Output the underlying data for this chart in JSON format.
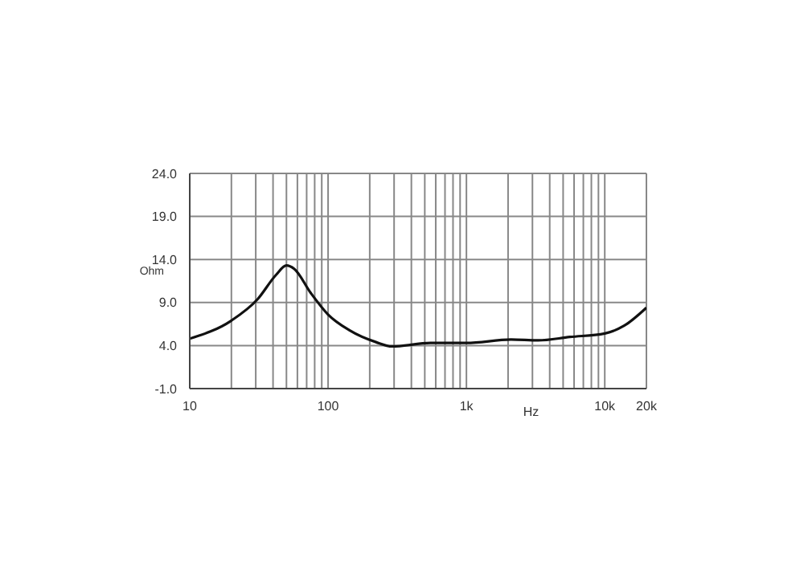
{
  "chart_data": {
    "type": "line",
    "xlabel": "Hz",
    "ylabel": "Ohm",
    "log": "x",
    "grid": true,
    "marker": "none",
    "line_style": "solid",
    "xlim": [
      10,
      20000
    ],
    "ylim": [
      -1,
      24
    ],
    "xticks": [
      {
        "value": 10,
        "label": "10"
      },
      {
        "value": 20,
        "label": null
      },
      {
        "value": 30,
        "label": null
      },
      {
        "value": 40,
        "label": null
      },
      {
        "value": 50,
        "label": null
      },
      {
        "value": 60,
        "label": null
      },
      {
        "value": 70,
        "label": null
      },
      {
        "value": 80,
        "label": null
      },
      {
        "value": 90,
        "label": null
      },
      {
        "value": 100,
        "label": "100"
      },
      {
        "value": 200,
        "label": null
      },
      {
        "value": 300,
        "label": null
      },
      {
        "value": 400,
        "label": null
      },
      {
        "value": 500,
        "label": null
      },
      {
        "value": 600,
        "label": null
      },
      {
        "value": 700,
        "label": null
      },
      {
        "value": 800,
        "label": null
      },
      {
        "value": 900,
        "label": null
      },
      {
        "value": 1000,
        "label": "1k"
      },
      {
        "value": 2000,
        "label": null
      },
      {
        "value": 3000,
        "label": null
      },
      {
        "value": 4000,
        "label": null
      },
      {
        "value": 5000,
        "label": null
      },
      {
        "value": 6000,
        "label": null
      },
      {
        "value": 7000,
        "label": null
      },
      {
        "value": 8000,
        "label": null
      },
      {
        "value": 9000,
        "label": null
      },
      {
        "value": 10000,
        "label": "10k"
      },
      {
        "value": 20000,
        "label": "20k"
      }
    ],
    "yticks": [
      {
        "value": -1,
        "label": "-1.0"
      },
      {
        "value": 4,
        "label": "4.0"
      },
      {
        "value": 9,
        "label": "9.0"
      },
      {
        "value": 14,
        "label": "14.0"
      },
      {
        "value": 19,
        "label": "19.0"
      },
      {
        "value": 24,
        "label": "24.0"
      }
    ],
    "series": [
      {
        "color": "#111111",
        "x": [
          10,
          20,
          31,
          42,
          50,
          57,
          75,
          100,
          142,
          222,
          290,
          550,
          1000,
          2100,
          3300,
          5600,
          10000,
          13800,
          20000
        ],
        "values": [
          4.8,
          6.9,
          9.4,
          12.2,
          13.3,
          12.9,
          10.1,
          7.6,
          5.8,
          4.4,
          3.9,
          4.3,
          4.3,
          4.7,
          4.6,
          5.0,
          5.4,
          6.3,
          8.4
        ]
      }
    ]
  }
}
